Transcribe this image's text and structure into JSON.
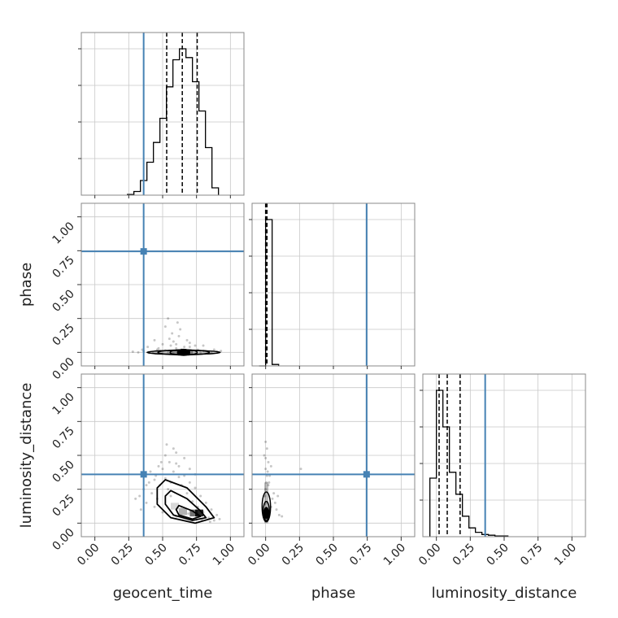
{
  "chart_data": {
    "type": "corner",
    "parameters": [
      "geocent_time",
      "phase",
      "luminosity_distance"
    ],
    "axis_labels": {
      "x": [
        "geocent_time",
        "phase",
        "luminosity_distance"
      ],
      "y": [
        "",
        "phase",
        "luminosity_distance"
      ]
    },
    "tick_labels": [
      "0.00",
      "0.25",
      "0.50",
      "0.75",
      "1.00"
    ],
    "ticks": [
      0,
      0.25,
      0.5,
      0.75,
      1.0
    ],
    "range": [
      -0.1,
      1.1
    ],
    "grid": true,
    "truth_color": "#4682b4",
    "line_color": "#000000",
    "truths": {
      "geocent_time": 0.36,
      "phase": 0.745,
      "luminosity_distance": 0.36
    },
    "quantiles": {
      "geocent_time": [
        0.53,
        0.645,
        0.755
      ],
      "phase": [
        0.0,
        0.005,
        0.01
      ],
      "luminosity_distance": [
        0.02,
        0.08,
        0.175
      ]
    },
    "histograms": {
      "geocent_time": {
        "bin_width": 0.048,
        "bins": [
          {
            "x": 0.24,
            "count": 1
          },
          {
            "x": 0.288,
            "count": 5
          },
          {
            "x": 0.336,
            "count": 20
          },
          {
            "x": 0.384,
            "count": 45
          },
          {
            "x": 0.432,
            "count": 72
          },
          {
            "x": 0.48,
            "count": 105
          },
          {
            "x": 0.528,
            "count": 148
          },
          {
            "x": 0.576,
            "count": 185
          },
          {
            "x": 0.624,
            "count": 200
          },
          {
            "x": 0.672,
            "count": 188
          },
          {
            "x": 0.72,
            "count": 155
          },
          {
            "x": 0.768,
            "count": 115
          },
          {
            "x": 0.816,
            "count": 65
          },
          {
            "x": 0.864,
            "count": 10
          }
        ]
      },
      "phase": {
        "bin_width": 0.048,
        "bins": [
          {
            "x": -0.048,
            "count": 0
          },
          {
            "x": 0.0,
            "count": 200
          },
          {
            "x": 0.048,
            "count": 2
          }
        ]
      },
      "luminosity_distance": {
        "bin_width": 0.048,
        "bins": [
          {
            "x": -0.048,
            "count": 80
          },
          {
            "x": 0.0,
            "count": 200
          },
          {
            "x": 0.048,
            "count": 150
          },
          {
            "x": 0.096,
            "count": 88
          },
          {
            "x": 0.144,
            "count": 58
          },
          {
            "x": 0.192,
            "count": 28
          },
          {
            "x": 0.24,
            "count": 12
          },
          {
            "x": 0.288,
            "count": 6
          },
          {
            "x": 0.336,
            "count": 3
          },
          {
            "x": 0.384,
            "count": 2
          },
          {
            "x": 0.432,
            "count": 1
          },
          {
            "x": 0.48,
            "count": 1
          }
        ]
      }
    },
    "scatter_samples": {
      "geocent_time_vs_phase": [
        [
          0.28,
          0.005
        ],
        [
          0.32,
          0.0
        ],
        [
          0.36,
          0.01
        ],
        [
          0.4,
          -0.005
        ],
        [
          0.43,
          0.0
        ],
        [
          0.46,
          0.02
        ],
        [
          0.48,
          0.01
        ],
        [
          0.5,
          -0.01
        ],
        [
          0.52,
          0.015
        ],
        [
          0.54,
          0.0
        ],
        [
          0.56,
          0.05
        ],
        [
          0.58,
          -0.01
        ],
        [
          0.6,
          0.03
        ],
        [
          0.62,
          0.0
        ],
        [
          0.64,
          0.02
        ],
        [
          0.66,
          -0.005
        ],
        [
          0.68,
          0.01
        ],
        [
          0.7,
          0.04
        ],
        [
          0.72,
          0.0
        ],
        [
          0.74,
          -0.01
        ],
        [
          0.76,
          0.02
        ],
        [
          0.78,
          0.0
        ],
        [
          0.8,
          0.01
        ],
        [
          0.83,
          -0.005
        ],
        [
          0.86,
          0.0
        ],
        [
          0.9,
          0.005
        ],
        [
          0.55,
          0.1
        ],
        [
          0.62,
          0.12
        ],
        [
          0.58,
          0.08
        ],
        [
          0.5,
          0.06
        ],
        [
          0.7,
          0.07
        ],
        [
          0.63,
          0.17
        ],
        [
          0.44,
          0.09
        ],
        [
          0.52,
          0.19
        ],
        [
          0.74,
          0.05
        ],
        [
          0.47,
          0.03
        ],
        [
          0.68,
          0.09
        ],
        [
          0.6,
          0.06
        ],
        [
          0.57,
          0.14
        ],
        [
          0.66,
          0.04
        ],
        [
          0.8,
          0.05
        ],
        [
          0.35,
          0.02
        ],
        [
          0.39,
          0.04
        ],
        [
          0.88,
          0.02
        ],
        [
          0.93,
          0.01
        ],
        [
          0.54,
          0.25
        ],
        [
          0.61,
          0.22
        ]
      ],
      "geocent_time_vs_luminosity_distance": [
        [
          0.4,
          0.3
        ],
        [
          0.45,
          0.35
        ],
        [
          0.5,
          0.4
        ],
        [
          0.55,
          0.45
        ],
        [
          0.6,
          0.52
        ],
        [
          0.42,
          0.22
        ],
        [
          0.48,
          0.28
        ],
        [
          0.52,
          0.33
        ],
        [
          0.58,
          0.38
        ],
        [
          0.62,
          0.42
        ],
        [
          0.66,
          0.35
        ],
        [
          0.7,
          0.3
        ],
        [
          0.74,
          0.26
        ],
        [
          0.78,
          0.2
        ],
        [
          0.82,
          0.15
        ],
        [
          0.86,
          0.1
        ],
        [
          0.9,
          0.06
        ],
        [
          0.44,
          0.12
        ],
        [
          0.46,
          0.18
        ],
        [
          0.5,
          0.08
        ],
        [
          0.54,
          0.25
        ],
        [
          0.56,
          0.2
        ],
        [
          0.64,
          0.28
        ],
        [
          0.68,
          0.22
        ],
        [
          0.72,
          0.16
        ],
        [
          0.76,
          0.12
        ],
        [
          0.8,
          0.08
        ],
        [
          0.84,
          0.04
        ],
        [
          0.36,
          0.25
        ],
        [
          0.38,
          0.15
        ],
        [
          0.33,
          0.2
        ],
        [
          0.6,
          0.05
        ],
        [
          0.66,
          0.48
        ],
        [
          0.58,
          0.55
        ],
        [
          0.52,
          0.5
        ],
        [
          0.47,
          0.42
        ],
        [
          0.7,
          0.4
        ],
        [
          0.74,
          0.36
        ],
        [
          0.62,
          0.34
        ],
        [
          0.88,
          0.02
        ],
        [
          0.92,
          0.03
        ],
        [
          0.3,
          0.18
        ],
        [
          0.41,
          0.38
        ],
        [
          0.56,
          0.3
        ],
        [
          0.64,
          0.12
        ],
        [
          0.69,
          0.07
        ],
        [
          0.75,
          0.05
        ],
        [
          0.79,
          0.03
        ],
        [
          0.85,
          0.01
        ],
        [
          0.49,
          0.45
        ],
        [
          0.53,
          0.58
        ],
        [
          0.6,
          0.44
        ],
        [
          0.44,
          0.32
        ],
        [
          0.38,
          0.28
        ],
        [
          0.34,
          0.1
        ]
      ],
      "phase_vs_luminosity_distance": [
        [
          0.0,
          0.05
        ],
        [
          0.005,
          0.1
        ],
        [
          0.01,
          0.15
        ],
        [
          -0.005,
          0.2
        ],
        [
          0.0,
          0.25
        ],
        [
          0.005,
          0.3
        ],
        [
          0.01,
          0.35
        ],
        [
          0.0,
          0.4
        ],
        [
          0.02,
          0.45
        ],
        [
          -0.01,
          0.5
        ],
        [
          0.03,
          0.08
        ],
        [
          0.04,
          0.12
        ],
        [
          0.05,
          0.18
        ],
        [
          0.06,
          0.22
        ],
        [
          0.02,
          0.28
        ],
        [
          0.01,
          0.55
        ],
        [
          0.0,
          0.6
        ],
        [
          0.03,
          0.35
        ],
        [
          0.07,
          0.15
        ],
        [
          0.08,
          0.1
        ],
        [
          0.1,
          0.06
        ],
        [
          0.12,
          0.05
        ],
        [
          0.04,
          0.42
        ],
        [
          0.26,
          0.4
        ],
        [
          0.005,
          0.02
        ],
        [
          0.015,
          0.38
        ],
        [
          0.0,
          0.48
        ],
        [
          0.025,
          0.3
        ],
        [
          0.09,
          0.2
        ],
        [
          -0.005,
          0.14
        ]
      ]
    }
  }
}
